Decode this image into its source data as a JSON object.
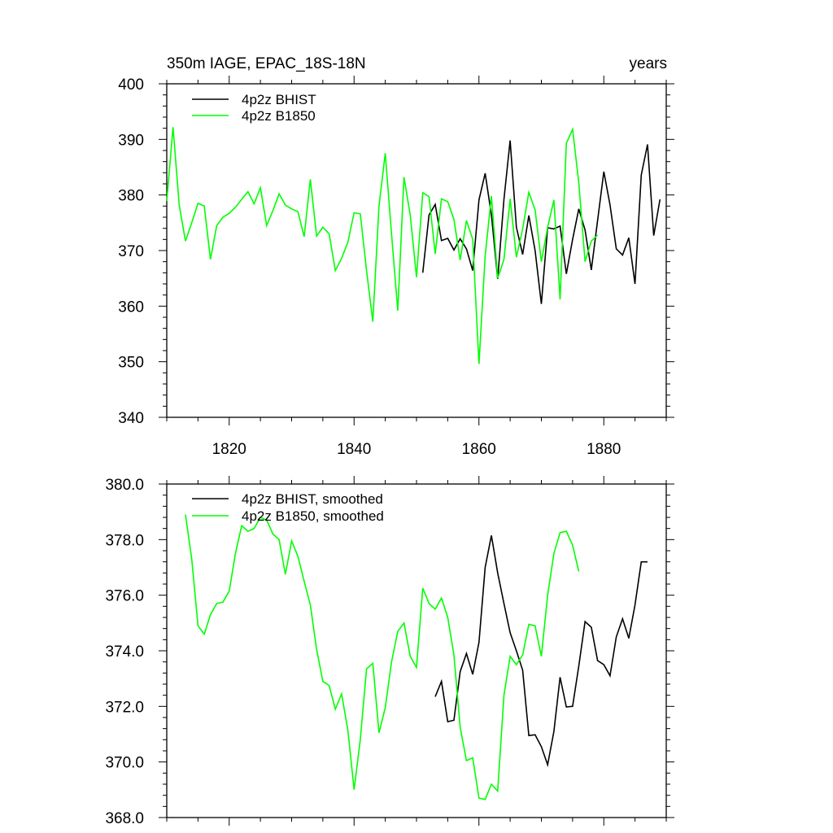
{
  "chart_data": [
    {
      "type": "line",
      "title_left": "350m IAGE, EPAC_18S-18N",
      "title_right": "years",
      "xlabel": "",
      "ylabel": "",
      "xlim": [
        1810,
        1890
      ],
      "ylim": [
        340,
        400
      ],
      "x_ticks": [
        1820,
        1840,
        1860,
        1880
      ],
      "x_tick_labels": [
        "1820",
        "1840",
        "1860",
        "1880"
      ],
      "y_ticks": [
        340,
        350,
        360,
        370,
        380,
        390,
        400
      ],
      "y_tick_labels": [
        "340",
        "350",
        "360",
        "370",
        "380",
        "390",
        "400"
      ],
      "legend_position": "top-left",
      "grid": false,
      "series": [
        {
          "name": "4p2z BHIST",
          "color": "#000000",
          "x": [
            1851,
            1852,
            1853,
            1854,
            1855,
            1856,
            1857,
            1858,
            1859,
            1860,
            1861,
            1862,
            1863,
            1864,
            1865,
            1866,
            1867,
            1868,
            1869,
            1870,
            1871,
            1872,
            1873,
            1874,
            1875,
            1876,
            1877,
            1878,
            1879,
            1880,
            1881,
            1882,
            1883,
            1884,
            1885,
            1886,
            1887,
            1888,
            1889
          ],
          "values": [
            366.0,
            376.4,
            378.3,
            371.8,
            372.2,
            370.1,
            372.1,
            370.3,
            366.4,
            379.1,
            383.9,
            376.4,
            364.9,
            379.2,
            389.8,
            374.2,
            369.3,
            376.3,
            370.0,
            360.4,
            374.1,
            373.9,
            374.4,
            365.8,
            372.0,
            377.5,
            373.7,
            366.5,
            375.4,
            384.2,
            378.2,
            370.3,
            369.2,
            372.3,
            364.0,
            383.6,
            389.1,
            372.7,
            379.2
          ]
        },
        {
          "name": "4p2z B1850",
          "color": "#00ff00",
          "x": [
            1810,
            1811,
            1812,
            1813,
            1814,
            1815,
            1816,
            1817,
            1818,
            1819,
            1820,
            1821,
            1822,
            1823,
            1824,
            1825,
            1826,
            1827,
            1828,
            1829,
            1830,
            1831,
            1832,
            1833,
            1834,
            1835,
            1836,
            1837,
            1838,
            1839,
            1840,
            1841,
            1842,
            1843,
            1844,
            1845,
            1846,
            1847,
            1848,
            1849,
            1850,
            1851,
            1852,
            1853,
            1854,
            1855,
            1856,
            1857,
            1858,
            1859,
            1860,
            1861,
            1862,
            1863,
            1864,
            1865,
            1866,
            1867,
            1868,
            1869,
            1870,
            1871,
            1872,
            1873,
            1874,
            1875,
            1876,
            1877,
            1878,
            1879
          ],
          "values": [
            378.9,
            392.2,
            378.2,
            371.7,
            375.0,
            378.5,
            378.0,
            368.4,
            374.5,
            376.0,
            376.7,
            377.8,
            379.2,
            380.6,
            378.4,
            381.3,
            374.5,
            377.2,
            380.2,
            378.2,
            377.5,
            377.0,
            372.5,
            382.8,
            372.6,
            374.2,
            373.0,
            366.4,
            368.6,
            371.5,
            376.8,
            376.6,
            366.4,
            357.2,
            378.0,
            387.5,
            373.0,
            359.2,
            383.2,
            376.4,
            365.2,
            380.4,
            379.7,
            369.4,
            379.3,
            378.8,
            375.6,
            368.3,
            375.4,
            372.0,
            349.6,
            369.0,
            379.8,
            365.0,
            368.4,
            379.3,
            368.8,
            373.9,
            380.5,
            377.3,
            368.0,
            374.2,
            379.1,
            361.2,
            389.3,
            391.8,
            382.2,
            368.0,
            371.7,
            372.8
          ]
        }
      ]
    },
    {
      "type": "line",
      "title_left": "",
      "title_right": "",
      "xlabel": "",
      "ylabel": "",
      "xlim": [
        1810,
        1890
      ],
      "ylim": [
        368,
        380
      ],
      "x_ticks": [
        1820,
        1840,
        1860,
        1880
      ],
      "y_ticks": [
        368,
        370,
        372,
        374,
        376,
        378,
        380
      ],
      "y_tick_labels": [
        "368.0",
        "370.0",
        "372.0",
        "374.0",
        "376.0",
        "378.0",
        "380.0"
      ],
      "legend_position": "top-left",
      "grid": false,
      "series": [
        {
          "name": "4p2z BHIST, smoothed",
          "color": "#000000",
          "x": [
            1853,
            1854,
            1855,
            1856,
            1857,
            1858,
            1859,
            1860,
            1861,
            1862,
            1863,
            1864,
            1865,
            1866,
            1867,
            1868,
            1869,
            1870,
            1871,
            1872,
            1873,
            1874,
            1875,
            1876,
            1877,
            1878,
            1879,
            1880,
            1881,
            1882,
            1883,
            1884,
            1885,
            1886,
            1887
          ],
          "values": [
            372.35,
            372.9,
            371.45,
            371.5,
            373.25,
            373.9,
            373.15,
            374.3,
            377.0,
            378.15,
            376.8,
            375.7,
            374.65,
            374.0,
            373.3,
            370.95,
            370.98,
            370.55,
            369.9,
            371.1,
            373.05,
            371.98,
            372.0,
            373.45,
            375.05,
            374.85,
            373.65,
            373.5,
            373.1,
            374.5,
            375.15,
            374.45,
            375.65,
            377.2,
            377.2
          ]
        },
        {
          "name": "4p2z B1850, smoothed",
          "color": "#00ff00",
          "x": [
            1813,
            1814,
            1815,
            1816,
            1817,
            1818,
            1819,
            1820,
            1821,
            1822,
            1823,
            1824,
            1825,
            1826,
            1827,
            1828,
            1829,
            1830,
            1831,
            1832,
            1833,
            1834,
            1835,
            1836,
            1837,
            1838,
            1839,
            1840,
            1841,
            1842,
            1843,
            1844,
            1845,
            1846,
            1847,
            1848,
            1849,
            1850,
            1851,
            1852,
            1853,
            1854,
            1855,
            1856,
            1857,
            1858,
            1859,
            1860,
            1861,
            1862,
            1863,
            1864,
            1865,
            1866,
            1867,
            1868,
            1869,
            1870,
            1871,
            1872,
            1873,
            1874,
            1875,
            1876
          ],
          "values": [
            378.9,
            377.3,
            374.9,
            374.6,
            375.3,
            375.7,
            375.75,
            376.15,
            377.5,
            378.5,
            378.3,
            378.4,
            378.8,
            378.7,
            378.2,
            378.0,
            376.75,
            377.95,
            377.4,
            376.5,
            375.65,
            374.05,
            372.9,
            372.75,
            371.9,
            372.45,
            371.15,
            369.0,
            370.8,
            373.35,
            373.55,
            371.05,
            371.95,
            373.6,
            374.7,
            375.0,
            373.8,
            373.4,
            376.25,
            375.7,
            375.5,
            375.9,
            375.2,
            373.85,
            371.25,
            370.05,
            370.15,
            368.7,
            368.65,
            369.2,
            368.95,
            372.4,
            373.8,
            373.5,
            373.85,
            374.95,
            374.9,
            373.8,
            376.0,
            377.5,
            378.25,
            378.3,
            377.8,
            376.85
          ]
        }
      ]
    }
  ]
}
